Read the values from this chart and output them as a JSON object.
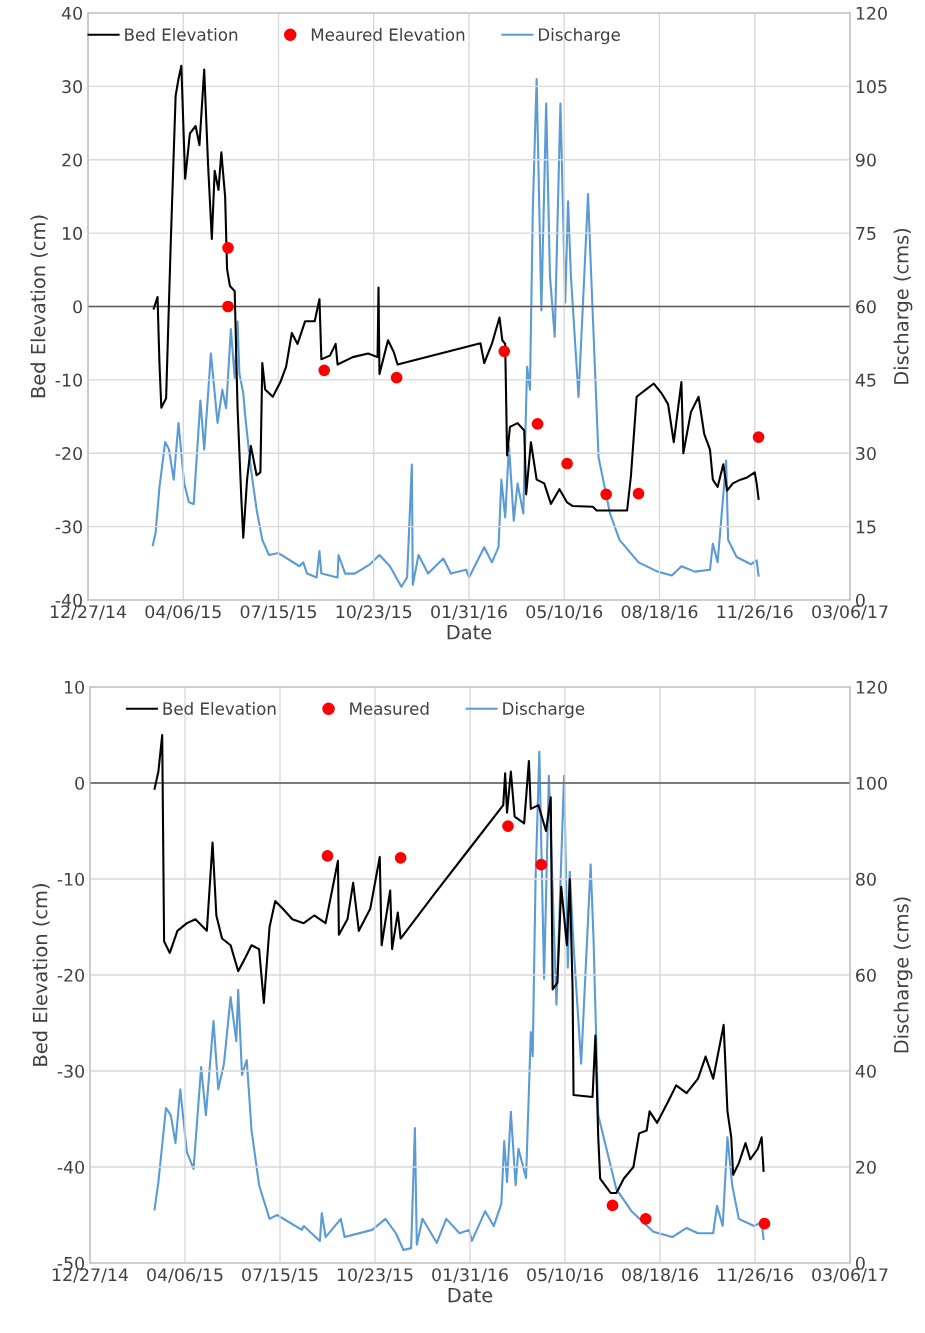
{
  "chart_data": [
    {
      "type": "line",
      "xlabel": "Date",
      "ylabel": "Bed Elevation (cm)",
      "y2label": "Discharge (cms)",
      "legend": "top",
      "grid": true,
      "xlim": [
        "2014-12-27",
        "2017-03-06"
      ],
      "xticks": [
        {
          "value": "2014-12-27",
          "label": "12/27/14"
        },
        {
          "value": "2015-04-06",
          "label": "04/06/15"
        },
        {
          "value": "2015-07-15",
          "label": "07/15/15"
        },
        {
          "value": "2015-10-23",
          "label": "10/23/15"
        },
        {
          "value": "2016-01-31",
          "label": "01/31/16"
        },
        {
          "value": "2016-05-10",
          "label": "05/10/16"
        },
        {
          "value": "2016-08-18",
          "label": "08/18/16"
        },
        {
          "value": "2016-11-26",
          "label": "11/26/16"
        },
        {
          "value": "2017-03-06",
          "label": "03/06/17"
        }
      ],
      "ylim": [
        -40,
        40
      ],
      "yticks": [
        -40,
        -30,
        -20,
        -10,
        0,
        10,
        20,
        30,
        40
      ],
      "y2lim": [
        0,
        120
      ],
      "y2ticks": [
        0,
        15,
        30,
        45,
        60,
        75,
        90,
        105,
        120
      ],
      "ref_lines": [
        {
          "axis": "y",
          "value": 0,
          "color": "#595959"
        }
      ],
      "series": [
        {
          "name": "Bed Elevation",
          "color": "#000000",
          "x": [
            "2015-03-06",
            "2015-03-10",
            "2015-03-12",
            "2015-03-14",
            "2015-03-19",
            "2015-03-24",
            "2015-03-29",
            "2015-04-01",
            "2015-04-04",
            "2015-04-08",
            "2015-04-13",
            "2015-04-19",
            "2015-04-23",
            "2015-04-28",
            "2015-05-02",
            "2015-05-06",
            "2015-05-09",
            "2015-05-13",
            "2015-05-16",
            "2015-05-20",
            "2015-05-22",
            "2015-05-25",
            "2015-05-30",
            "2015-06-02",
            "2015-06-06",
            "2015-06-08",
            "2015-06-12",
            "2015-06-16",
            "2015-06-22",
            "2015-06-26",
            "2015-06-28",
            "2015-07-01",
            "2015-07-09",
            "2015-07-17",
            "2015-07-23",
            "2015-07-29",
            "2015-08-04",
            "2015-08-12",
            "2015-08-22",
            "2015-08-27",
            "2015-08-29",
            "2015-09-07",
            "2015-09-13",
            "2015-09-15",
            "2015-10-01",
            "2015-10-17",
            "2015-10-27",
            "2015-10-28",
            "2015-10-29",
            "2015-11-07",
            "2015-11-13",
            "2015-11-17",
            "2016-02-12",
            "2016-02-16",
            "2016-02-24",
            "2016-03-03",
            "2016-03-06",
            "2016-03-09",
            "2016-03-11",
            "2016-03-14",
            "2016-03-22",
            "2016-03-29",
            "2016-03-31",
            "2016-04-05",
            "2016-04-11",
            "2016-04-19",
            "2016-04-26",
            "2016-05-05",
            "2016-05-13",
            "2016-05-19",
            "2016-06-09",
            "2016-06-13",
            "2016-07-15",
            "2016-07-19",
            "2016-07-25",
            "2016-08-04",
            "2016-08-12",
            "2016-08-20",
            "2016-08-27",
            "2016-09-02",
            "2016-09-10",
            "2016-09-12",
            "2016-09-20",
            "2016-09-28",
            "2016-10-04",
            "2016-10-10",
            "2016-10-13",
            "2016-10-18",
            "2016-10-24",
            "2016-10-28",
            "2016-11-03",
            "2016-11-11",
            "2016-11-18",
            "2016-11-26",
            "2016-11-28",
            "2016-11-30"
          ],
          "values": [
            -0.3,
            1.3,
            -7.7,
            -13.8,
            -12.5,
            9.2,
            28.7,
            31,
            32.8,
            17.4,
            23.6,
            24.6,
            22,
            32.3,
            19.5,
            9.2,
            18.5,
            15.9,
            21,
            14.9,
            5.1,
            2.8,
            2.1,
            -13.8,
            -26.2,
            -31.5,
            -23.6,
            -19,
            -23,
            -22.6,
            -7.7,
            -11.3,
            -12.3,
            -10.3,
            -8.2,
            -3.6,
            -5.1,
            -2,
            -2,
            1,
            -7.2,
            -6.7,
            -5.1,
            -7.9,
            -6.9,
            -6.4,
            -6.9,
            2.6,
            -9.2,
            -4.6,
            -6.2,
            -7.9,
            -5,
            -7.7,
            -5.1,
            -1.5,
            -4.6,
            -5.1,
            -20.3,
            -16.4,
            -15.9,
            -16.9,
            -25.6,
            -18.5,
            -23.6,
            -24.1,
            -26.9,
            -24.9,
            -26.7,
            -27.2,
            -27.3,
            -27.8,
            -27.8,
            -23.1,
            -12.3,
            -11.3,
            -10.5,
            -11.8,
            -13.3,
            -18.5,
            -10.3,
            -20,
            -14.4,
            -12.3,
            -17.4,
            -19.5,
            -23.6,
            -24.6,
            -21.5,
            -25.1,
            -24.1,
            -23.6,
            -23.3,
            -22.6,
            -24.1,
            -26.2
          ]
        },
        {
          "name": "Meaured Elevation",
          "type": "scatter",
          "marker": "circle",
          "color": "#ff0000",
          "x": [
            "2015-05-23",
            "2015-05-23",
            "2015-09-01",
            "2015-11-16",
            "2016-03-08",
            "2016-04-12",
            "2016-05-13",
            "2016-06-23",
            "2016-07-27",
            "2016-11-30"
          ],
          "values": [
            8,
            0,
            -8.7,
            -9.7,
            -6.1,
            -16,
            -21.4,
            -25.6,
            -25.5,
            -17.8
          ]
        },
        {
          "name": "Discharge",
          "axis": "y2",
          "color": "#5b9bd5",
          "x": [
            "2015-03-05",
            "2015-03-08",
            "2015-03-12",
            "2015-03-18",
            "2015-03-22",
            "2015-03-27",
            "2015-04-01",
            "2015-04-07",
            "2015-04-12",
            "2015-04-17",
            "2015-04-24",
            "2015-04-28",
            "2015-05-05",
            "2015-05-12",
            "2015-05-17",
            "2015-05-21",
            "2015-05-26",
            "2015-05-30",
            "2015-06-02",
            "2015-06-04",
            "2015-06-08",
            "2015-06-10",
            "2015-06-16",
            "2015-06-22",
            "2015-06-28",
            "2015-07-05",
            "2015-07-15",
            "2015-08-06",
            "2015-08-10",
            "2015-08-14",
            "2015-08-24",
            "2015-08-27",
            "2015-08-29",
            "2015-09-15",
            "2015-09-16",
            "2015-09-23",
            "2015-10-03",
            "2015-10-19",
            "2015-10-29",
            "2015-11-09",
            "2015-11-21",
            "2015-11-27",
            "2015-12-02",
            "2015-12-03",
            "2015-12-09",
            "2015-12-19",
            "2016-01-04",
            "2016-01-12",
            "2016-01-28",
            "2016-01-31",
            "2016-02-16",
            "2016-02-24",
            "2016-03-02",
            "2016-03-05",
            "2016-03-09",
            "2016-03-13",
            "2016-03-18",
            "2016-03-22",
            "2016-03-28",
            "2016-04-01",
            "2016-04-04",
            "2016-04-07",
            "2016-04-11",
            "2016-04-16",
            "2016-04-21",
            "2016-04-25",
            "2016-04-30",
            "2016-05-06",
            "2016-05-11",
            "2016-05-14",
            "2016-05-17",
            "2016-05-25",
            "2016-05-31",
            "2016-06-04",
            "2016-06-07",
            "2016-06-15",
            "2016-06-27",
            "2016-07-07",
            "2016-07-27",
            "2016-08-16",
            "2016-08-31",
            "2016-09-10",
            "2016-09-24",
            "2016-10-10",
            "2016-10-13",
            "2016-10-18",
            "2016-10-27",
            "2016-10-29",
            "2016-11-07",
            "2016-11-22",
            "2016-11-28",
            "2016-11-30"
          ],
          "values": [
            11.2,
            13.8,
            23,
            32.3,
            30.8,
            24.6,
            36.2,
            23.8,
            20,
            19.6,
            40.8,
            30.8,
            50.4,
            36.2,
            43,
            39.2,
            55.4,
            45.4,
            56.9,
            46.2,
            42.3,
            37.7,
            26.9,
            18.5,
            12.3,
            9.2,
            9.6,
            6.9,
            7.7,
            5.4,
            4.6,
            10,
            5.4,
            4.6,
            9.2,
            5.4,
            5.4,
            7.3,
            9.2,
            6.9,
            2.7,
            4.6,
            27.7,
            3.1,
            9.2,
            5.4,
            8.5,
            5.4,
            6.2,
            4.6,
            10.8,
            7.7,
            10.8,
            24.6,
            16.9,
            31.5,
            16.2,
            23.8,
            17.7,
            47.7,
            43,
            80,
            106.5,
            59.2,
            101.5,
            66.2,
            53.8,
            101.5,
            60.8,
            81.5,
            66.2,
            41.5,
            66.2,
            83,
            67.7,
            29.2,
            17.7,
            12.3,
            7.7,
            5.8,
            5,
            6.9,
            5.8,
            6.2,
            11.5,
            7.7,
            28.5,
            12.3,
            8.8,
            7.3,
            8.1,
            5
          ]
        }
      ]
    },
    {
      "type": "line",
      "xlabel": "Date",
      "ylabel": "Bed Elevation (cm)",
      "y2label": "Discharge (cms)",
      "legend": "top",
      "grid": true,
      "xlim": [
        "2014-12-27",
        "2017-03-06"
      ],
      "xticks": [
        {
          "value": "2014-12-27",
          "label": "12/27/14"
        },
        {
          "value": "2015-04-06",
          "label": "04/06/15"
        },
        {
          "value": "2015-07-15",
          "label": "07/15/15"
        },
        {
          "value": "2015-10-23",
          "label": "10/23/15"
        },
        {
          "value": "2016-01-31",
          "label": "01/31/16"
        },
        {
          "value": "2016-05-10",
          "label": "05/10/16"
        },
        {
          "value": "2016-08-18",
          "label": "08/18/16"
        },
        {
          "value": "2016-11-26",
          "label": "11/26/16"
        },
        {
          "value": "2017-03-06",
          "label": "03/06/17"
        }
      ],
      "ylim": [
        -50,
        10
      ],
      "yticks": [
        -50,
        -40,
        -30,
        -20,
        -10,
        0,
        10
      ],
      "y2lim": [
        0,
        120
      ],
      "y2ticks": [
        0,
        20,
        40,
        60,
        80,
        100,
        120
      ],
      "ref_lines": [
        {
          "axis": "y",
          "value": 0,
          "color": "#595959"
        }
      ],
      "series": [
        {
          "name": "Bed Elevation",
          "color": "#000000",
          "x": [
            "2015-03-05",
            "2015-03-09",
            "2015-03-13",
            "2015-03-15",
            "2015-03-21",
            "2015-03-29",
            "2015-04-08",
            "2015-04-17",
            "2015-04-29",
            "2015-05-05",
            "2015-05-09",
            "2015-05-15",
            "2015-05-24",
            "2015-06-01",
            "2015-06-09",
            "2015-06-15",
            "2015-06-23",
            "2015-06-28",
            "2015-07-04",
            "2015-07-10",
            "2015-07-18",
            "2015-07-28",
            "2015-08-09",
            "2015-08-20",
            "2015-09-01",
            "2015-09-14",
            "2015-09-15",
            "2015-09-24",
            "2015-09-30",
            "2015-10-06",
            "2015-10-18",
            "2015-10-28",
            "2015-10-30",
            "2015-11-08",
            "2015-11-10",
            "2015-11-16",
            "2015-11-19",
            "2015-12-25",
            "2016-01-30",
            "2016-03-06",
            "2016-03-08",
            "2016-03-10",
            "2016-03-14",
            "2016-03-18",
            "2016-03-28",
            "2016-04-02",
            "2016-04-04",
            "2016-04-12",
            "2016-04-20",
            "2016-04-25",
            "2016-04-27",
            "2016-05-02",
            "2016-05-06",
            "2016-05-12",
            "2016-05-15",
            "2016-05-18",
            "2016-05-19",
            "2016-06-08",
            "2016-06-11",
            "2016-06-14",
            "2016-06-16",
            "2016-06-27",
            "2016-07-03",
            "2016-07-11",
            "2016-07-21",
            "2016-07-27",
            "2016-08-04",
            "2016-08-07",
            "2016-08-15",
            "2016-08-27",
            "2016-09-04",
            "2016-09-15",
            "2016-09-27",
            "2016-10-05",
            "2016-10-13",
            "2016-10-24",
            "2016-10-28",
            "2016-11-01",
            "2016-11-03",
            "2016-11-09",
            "2016-11-16",
            "2016-11-21",
            "2016-11-29",
            "2016-12-03",
            "2016-12-05"
          ],
          "values": [
            -0.6,
            1.2,
            5,
            -16.5,
            -17.7,
            -15.4,
            -14.6,
            -14.2,
            -15.4,
            -6.2,
            -13.8,
            -16.2,
            -16.9,
            -19.6,
            -18.1,
            -16.9,
            -17.3,
            -22.9,
            -15,
            -12.3,
            -13.1,
            -14.2,
            -14.6,
            -13.8,
            -14.6,
            -8.1,
            -15.8,
            -14.2,
            -10.4,
            -15.4,
            -13.1,
            -7.7,
            -16.9,
            -11.2,
            -17.3,
            -13.5,
            -16.2,
            -11.5,
            -6.9,
            -2.3,
            1,
            -3.1,
            1.2,
            -3.5,
            -4.2,
            2.3,
            -2.7,
            -2.3,
            -5,
            -1.5,
            -21.5,
            -20.8,
            -10.8,
            -16.9,
            -10,
            -21.5,
            -32.5,
            -32.7,
            -26.3,
            -36.9,
            -41.2,
            -42.7,
            -42.7,
            -41.2,
            -40,
            -36.5,
            -36.2,
            -34.2,
            -35.4,
            -33.1,
            -31.5,
            -32.3,
            -30.8,
            -28.5,
            -30.8,
            -25.2,
            -34.2,
            -36.9,
            -40.8,
            -39.6,
            -37.5,
            -39.2,
            -38.1,
            -36.9,
            -40.4
          ]
        },
        {
          "name": "Measured",
          "type": "scatter",
          "marker": "circle",
          "color": "#ff0000",
          "x": [
            "2015-09-03",
            "2015-11-19",
            "2016-03-11",
            "2016-04-15",
            "2016-06-29",
            "2016-08-03",
            "2016-12-06"
          ],
          "values": [
            -7.6,
            -7.8,
            -4.5,
            -8.5,
            -44,
            -45.4,
            -45.9
          ]
        },
        {
          "name": "Discharge",
          "axis": "y2",
          "color": "#5b9bd5",
          "x": [
            "2015-03-05",
            "2015-03-09",
            "2015-03-17",
            "2015-03-22",
            "2015-03-27",
            "2015-04-01",
            "2015-04-08",
            "2015-04-15",
            "2015-04-23",
            "2015-04-28",
            "2015-05-06",
            "2015-05-11",
            "2015-05-17",
            "2015-05-24",
            "2015-05-30",
            "2015-06-01",
            "2015-06-05",
            "2015-06-10",
            "2015-06-15",
            "2015-06-23",
            "2015-07-04",
            "2015-07-12",
            "2015-08-07",
            "2015-08-09",
            "2015-08-26",
            "2015-08-28",
            "2015-09-01",
            "2015-09-17",
            "2015-09-21",
            "2015-10-20",
            "2015-11-03",
            "2015-11-14",
            "2015-11-22",
            "2015-11-30",
            "2015-12-04",
            "2015-12-06",
            "2015-12-12",
            "2015-12-27",
            "2016-01-06",
            "2016-01-20",
            "2016-01-30",
            "2016-02-02",
            "2016-02-16",
            "2016-02-25",
            "2016-03-04",
            "2016-03-07",
            "2016-03-10",
            "2016-03-14",
            "2016-03-19",
            "2016-03-22",
            "2016-03-30",
            "2016-04-04",
            "2016-04-06",
            "2016-04-09",
            "2016-04-13",
            "2016-04-18",
            "2016-04-23",
            "2016-05-01",
            "2016-05-09",
            "2016-05-13",
            "2016-05-15",
            "2016-05-19",
            "2016-05-27",
            "2016-06-06",
            "2016-06-09",
            "2016-06-14",
            "2016-07-03",
            "2016-07-19",
            "2016-08-11",
            "2016-08-31",
            "2016-09-15",
            "2016-09-27",
            "2016-10-13",
            "2016-10-17",
            "2016-10-23",
            "2016-10-28",
            "2016-11-02",
            "2016-11-09",
            "2016-11-25",
            "2016-12-03",
            "2016-12-05"
          ],
          "values": [
            11.2,
            16.9,
            32.3,
            30.8,
            25,
            36.2,
            23.1,
            19.6,
            40.8,
            30.8,
            50.4,
            36.2,
            41.5,
            55.4,
            46.2,
            56.9,
            39.2,
            42.3,
            27.7,
            16.2,
            9.2,
            10,
            6.9,
            7.7,
            4.6,
            10.4,
            5.4,
            9.2,
            5.4,
            6.9,
            9.2,
            6.2,
            2.7,
            3.1,
            28.1,
            3.8,
            9.2,
            4.2,
            9.2,
            6.2,
            6.9,
            4.6,
            10.8,
            7.7,
            12.3,
            25.4,
            16.9,
            31.5,
            16.2,
            23.8,
            17.7,
            48.1,
            43.1,
            80,
            106.5,
            59.2,
            101.5,
            53.8,
            101.5,
            61.5,
            81.5,
            66.2,
            41.5,
            83,
            67.7,
            30.8,
            15.4,
            10.8,
            6.5,
            5.4,
            7.3,
            6.2,
            6.2,
            11.9,
            7.7,
            26.2,
            16.2,
            9.2,
            7.7,
            8.5,
            5
          ]
        }
      ]
    }
  ]
}
